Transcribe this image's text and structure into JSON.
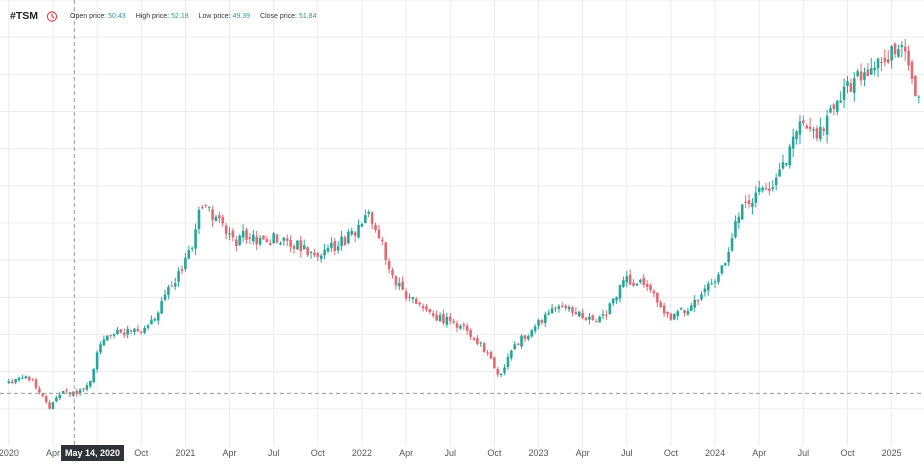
{
  "header": {
    "symbol": "#TSM",
    "icon": "clock-icon",
    "open_label": "Open price:",
    "open_value": "50.43",
    "high_label": "High price:",
    "high_value": "52.18",
    "low_label": "Low price:",
    "low_value": "49.39",
    "close_label": "Close price:",
    "close_value": "51.84"
  },
  "crosshair": {
    "date_label": "May 14, 2020",
    "price": 51.84
  },
  "colors": {
    "up": "#26a69a",
    "down": "#e06b72",
    "grid": "#ececec",
    "axis_text": "#555555",
    "badge": "#2f3338"
  },
  "chart_data": {
    "type": "candlestick",
    "title": "",
    "ylim": [
      28,
      230
    ],
    "x_ticks": [
      "2020",
      "Apr",
      "Jul",
      "Oct",
      "2021",
      "Apr",
      "Jul",
      "Oct",
      "2022",
      "Apr",
      "Jul",
      "Oct",
      "2023",
      "Apr",
      "Jul",
      "Oct",
      "2024",
      "Apr",
      "Jul",
      "Oct",
      "2025"
    ],
    "x_tick_months": [
      0,
      3,
      6,
      9,
      12,
      15,
      18,
      21,
      24,
      27,
      30,
      33,
      36,
      39,
      42,
      45,
      48,
      51,
      54,
      57,
      60
    ],
    "month_range": [
      -0.6,
      62.2
    ],
    "grid": true,
    "close_trend": [
      [
        0,
        56
      ],
      [
        0.5,
        58
      ],
      [
        1,
        59
      ],
      [
        1.5,
        58
      ],
      [
        2.2,
        51
      ],
      [
        2.7,
        45
      ],
      [
        3.2,
        50
      ],
      [
        4,
        53
      ],
      [
        4.5,
        51
      ],
      [
        5.2,
        55
      ],
      [
        5.7,
        60
      ],
      [
        6,
        71
      ],
      [
        7,
        79
      ],
      [
        8,
        80
      ],
      [
        9,
        80
      ],
      [
        10,
        88
      ],
      [
        11,
        100
      ],
      [
        11.8,
        110
      ],
      [
        12.5,
        118
      ],
      [
        13,
        135
      ],
      [
        13.5,
        138
      ],
      [
        14,
        131
      ],
      [
        14.6,
        126
      ],
      [
        15.2,
        120
      ],
      [
        16,
        124
      ],
      [
        17,
        121
      ],
      [
        18,
        122
      ],
      [
        19,
        121
      ],
      [
        20,
        117
      ],
      [
        21,
        112
      ],
      [
        22,
        118
      ],
      [
        23,
        122
      ],
      [
        23.5,
        125
      ],
      [
        24,
        126
      ],
      [
        24.4,
        136
      ],
      [
        24.8,
        128
      ],
      [
        25.2,
        124
      ],
      [
        25.6,
        112
      ],
      [
        26,
        104
      ],
      [
        27,
        97
      ],
      [
        28,
        90
      ],
      [
        29,
        87
      ],
      [
        30,
        84
      ],
      [
        31,
        81
      ],
      [
        32,
        75
      ],
      [
        32.8,
        66
      ],
      [
        33.2,
        61
      ],
      [
        33.6,
        62
      ],
      [
        34.2,
        71
      ],
      [
        35,
        78
      ],
      [
        35.6,
        79
      ],
      [
        36,
        84
      ],
      [
        37,
        90
      ],
      [
        38,
        92
      ],
      [
        38.5,
        89
      ],
      [
        39,
        87
      ],
      [
        40,
        84
      ],
      [
        41,
        92
      ],
      [
        41.6,
        101
      ],
      [
        42,
        104
      ],
      [
        43,
        101
      ],
      [
        44,
        94
      ],
      [
        45,
        86
      ],
      [
        45.6,
        88
      ],
      [
        46,
        90
      ],
      [
        47,
        97
      ],
      [
        48,
        102
      ],
      [
        48.6,
        110
      ],
      [
        49.2,
        125
      ],
      [
        50,
        137
      ],
      [
        51,
        142
      ],
      [
        52,
        146
      ],
      [
        53,
        161
      ],
      [
        53.6,
        173
      ],
      [
        54,
        175
      ],
      [
        55,
        170
      ],
      [
        55.6,
        176
      ],
      [
        56,
        178
      ],
      [
        57,
        191
      ],
      [
        58,
        198
      ],
      [
        58.8,
        201
      ],
      [
        59.5,
        198
      ],
      [
        60,
        206
      ],
      [
        60.4,
        212
      ],
      [
        60.8,
        205
      ],
      [
        61.2,
        196
      ],
      [
        62,
        185
      ]
    ]
  }
}
